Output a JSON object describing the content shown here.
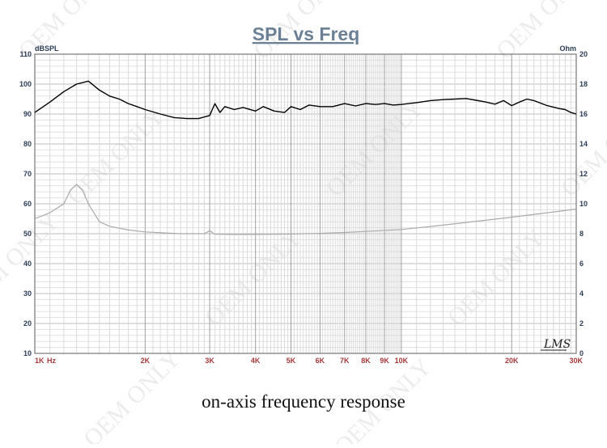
{
  "chart_data": {
    "type": "line",
    "title": "SPL vs Freq",
    "ylabel_left": "dBSPL",
    "ylabel_right": "Ohm",
    "caption": "on-axis frequency response",
    "watermark": "OEM ONLY",
    "logo": "LMS",
    "x_scale": "log",
    "xlim": [
      1000,
      30000
    ],
    "ylim_left": [
      10,
      110
    ],
    "ylim_right": [
      0,
      20
    ],
    "grid": true,
    "x_ticks": [
      {
        "value": 1000,
        "label": "1K"
      },
      {
        "value": 2000,
        "label": "2K"
      },
      {
        "value": 3000,
        "label": "3K"
      },
      {
        "value": 4000,
        "label": "4K"
      },
      {
        "value": 5000,
        "label": "5K"
      },
      {
        "value": 6000,
        "label": "6K"
      },
      {
        "value": 7000,
        "label": "7K"
      },
      {
        "value": 8000,
        "label": "8K"
      },
      {
        "value": 9000,
        "label": "9K"
      },
      {
        "value": 10000,
        "label": "10K"
      },
      {
        "value": 20000,
        "label": "20K"
      },
      {
        "value": 30000,
        "label": "30K"
      }
    ],
    "x_unit_label": "Hz",
    "y_ticks_left": [
      10,
      20,
      30,
      40,
      50,
      60,
      70,
      80,
      90,
      100,
      110
    ],
    "y_ticks_right": [
      0,
      2,
      4,
      6,
      8,
      10,
      12,
      14,
      16,
      18,
      20
    ],
    "series": [
      {
        "axis": "left",
        "color": "#000000",
        "x": [
          1000,
          1100,
          1200,
          1300,
          1400,
          1500,
          1600,
          1700,
          1800,
          1900,
          2000,
          2200,
          2400,
          2600,
          2800,
          3000,
          3100,
          3200,
          3300,
          3500,
          3700,
          4000,
          4200,
          4500,
          4800,
          5000,
          5300,
          5600,
          6000,
          6500,
          7000,
          7500,
          8000,
          8500,
          9000,
          9500,
          10000,
          11000,
          12000,
          13000,
          14000,
          15000,
          16000,
          17000,
          18000,
          19000,
          20000,
          21000,
          22000,
          23000,
          25000,
          27000,
          28000,
          29000,
          30000
        ],
        "y": [
          90.5,
          94,
          97.5,
          100,
          101,
          98,
          96,
          95,
          93.5,
          92.5,
          91.5,
          90,
          88.8,
          88.5,
          88.5,
          89.5,
          93.5,
          90.5,
          92.5,
          91.5,
          92.2,
          91,
          92.5,
          91,
          90.5,
          92.5,
          91.5,
          93,
          92.5,
          92.5,
          93.5,
          92.7,
          93.5,
          93.2,
          93.5,
          93,
          93.2,
          93.8,
          94.5,
          94.8,
          95,
          95.2,
          94.6,
          94,
          93.3,
          94.5,
          92.8,
          94,
          95,
          94.5,
          92.8,
          91.8,
          91.5,
          90.5,
          90
        ]
      },
      {
        "axis": "right",
        "color": "#aaaaaa",
        "x": [
          1000,
          1100,
          1200,
          1250,
          1300,
          1350,
          1400,
          1500,
          1600,
          1800,
          2000,
          2500,
          2900,
          3000,
          3100,
          3500,
          4000,
          5000,
          6000,
          7000,
          8000,
          10000,
          12000,
          15000,
          20000,
          25000,
          30000
        ],
        "y": [
          9.0,
          9.4,
          10.0,
          10.9,
          11.3,
          10.9,
          10.0,
          8.8,
          8.5,
          8.25,
          8.12,
          8.0,
          8.0,
          8.2,
          7.96,
          7.95,
          7.95,
          7.98,
          8.02,
          8.08,
          8.15,
          8.28,
          8.48,
          8.75,
          9.1,
          9.4,
          9.65
        ]
      }
    ]
  }
}
